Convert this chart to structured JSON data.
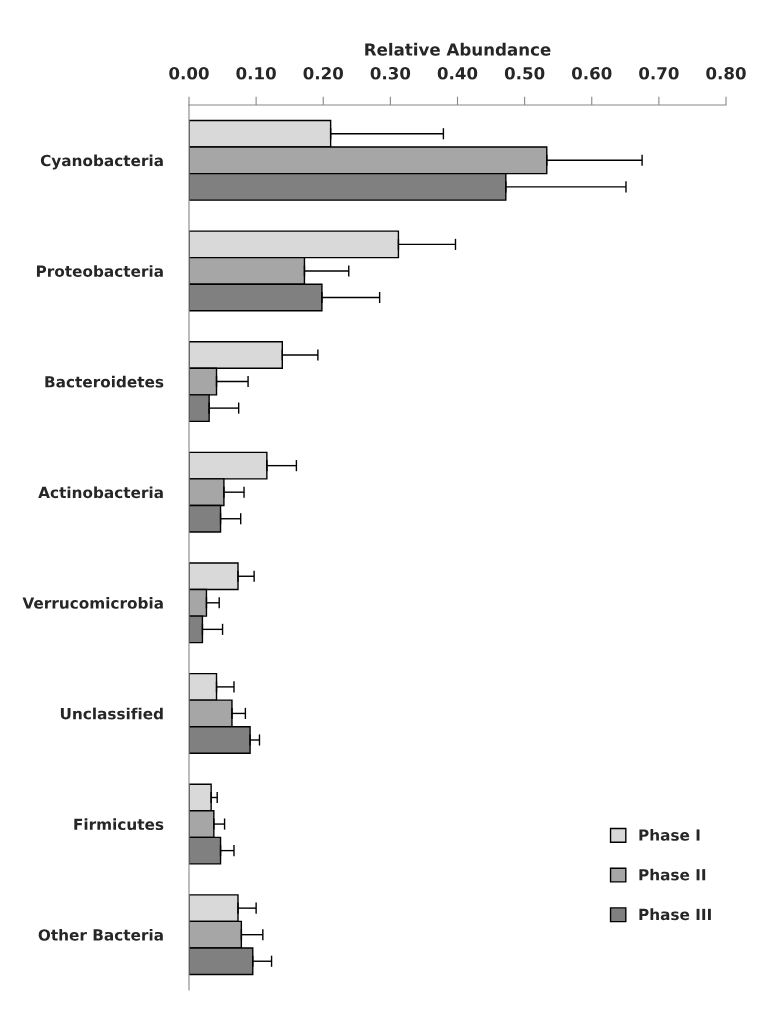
{
  "chart_data": {
    "type": "bar",
    "orientation": "horizontal",
    "xlabel": "Relative Abundance",
    "categories": [
      "Cyanobacteria",
      "Proteobacteria",
      "Bacteroidetes",
      "Actinobacteria",
      "Verrucomicrobia",
      "Unclassified",
      "Firmicutes",
      "Other Bacteria"
    ],
    "series": [
      {
        "name": "Phase I",
        "color": "#d9d9d9",
        "values": [
          0.211,
          0.312,
          0.139,
          0.116,
          0.073,
          0.041,
          0.033,
          0.073
        ],
        "errors": [
          [
            0.211,
            0.379
          ],
          [
            0.312,
            0.397
          ],
          [
            0.139,
            0.192
          ],
          [
            0.116,
            0.16
          ],
          [
            0.073,
            0.097
          ],
          [
            0.041,
            0.067
          ],
          [
            0.033,
            0.042
          ],
          [
            0.073,
            0.1
          ]
        ]
      },
      {
        "name": "Phase II",
        "color": "#a6a6a6",
        "values": [
          0.533,
          0.172,
          0.041,
          0.052,
          0.026,
          0.064,
          0.037,
          0.078
        ],
        "errors": [
          [
            0.533,
            0.675
          ],
          [
            0.172,
            0.238
          ],
          [
            0.041,
            0.088
          ],
          [
            0.052,
            0.082
          ],
          [
            0.026,
            0.045
          ],
          [
            0.064,
            0.084
          ],
          [
            0.037,
            0.053
          ],
          [
            0.078,
            0.11
          ]
        ]
      },
      {
        "name": "Phase III",
        "color": "#808080",
        "values": [
          0.472,
          0.198,
          0.03,
          0.047,
          0.02,
          0.091,
          0.047,
          0.095
        ],
        "errors": [
          [
            0.472,
            0.651
          ],
          [
            0.198,
            0.284
          ],
          [
            0.03,
            0.074
          ],
          [
            0.047,
            0.077
          ],
          [
            0.02,
            0.05
          ],
          [
            0.091,
            0.105
          ],
          [
            0.047,
            0.067
          ],
          [
            0.095,
            0.123
          ]
        ]
      }
    ],
    "xlim": [
      0,
      0.8
    ],
    "xticks": [
      {
        "value": 0,
        "label": "0.00"
      },
      {
        "value": 0.1,
        "label": "0.10"
      },
      {
        "value": 0.2,
        "label": "0.20"
      },
      {
        "value": 0.3,
        "label": "0.30"
      },
      {
        "value": 0.4,
        "label": "0.40"
      },
      {
        "value": 0.5,
        "label": "0.50"
      },
      {
        "value": 0.6,
        "label": "0.60"
      },
      {
        "value": 0.7,
        "label": "0.70"
      },
      {
        "value": 0.8,
        "label": "0.80"
      }
    ],
    "grid": false,
    "legend": "bottom right"
  }
}
